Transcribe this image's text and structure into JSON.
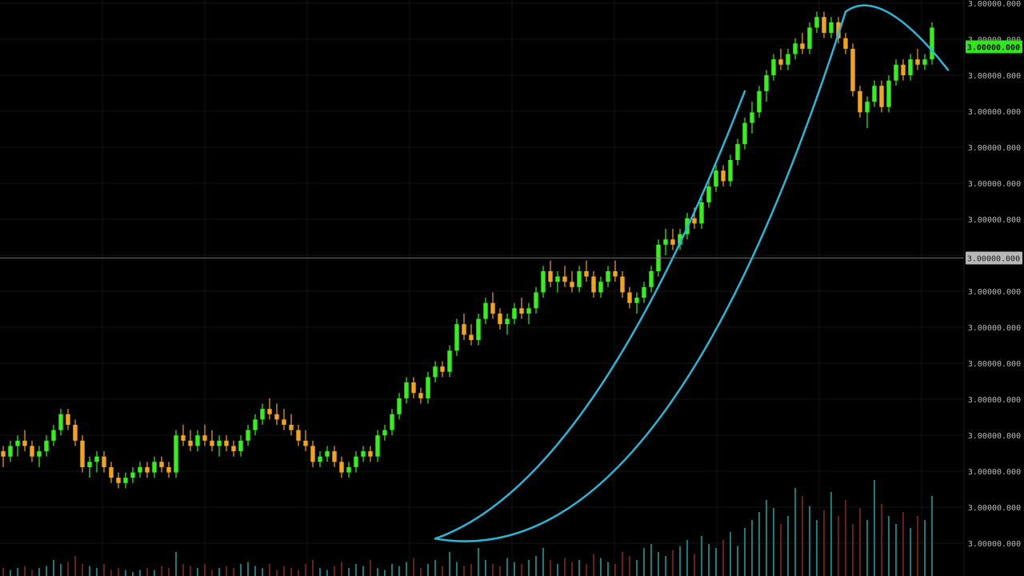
{
  "colors": {
    "background": "#000000",
    "bull": "#35f01c",
    "bear": "#f2a51c",
    "volume_up": "#1aa8a0",
    "volume_down": "#8a2a22",
    "curve": "#2ab8d8",
    "grid": "#141414",
    "crosshair": "#7a7a7a",
    "price_tag": "#2fe81a",
    "cross_tag": "#b8b8b8"
  },
  "chart_data": {
    "type": "candlestick",
    "title": "",
    "xlabel": "",
    "ylabel": "",
    "y_ticks": [
      "3.00000.000",
      "3.00000.000",
      "3.00000.000",
      "3.00000.000",
      "3.00000.000",
      "3.00000.000",
      "3.00000.000",
      "3.00000.000",
      "3.00000.000",
      "3.00000.000",
      "3.00000.000",
      "3.00000.000",
      "3.00000.000",
      "3.00000.000",
      "3.00000.000",
      "3.00000.000",
      "3.00000.000"
    ],
    "ylim": [
      0,
      100
    ],
    "current_price_tag": "3.00000.000",
    "crosshair_price_tag": "3.00000.000",
    "crosshair_level": 52.5,
    "candles": [
      [
        16,
        17,
        13,
        15
      ],
      [
        15,
        18,
        14,
        17
      ],
      [
        17,
        19,
        15,
        18
      ],
      [
        18,
        20,
        16,
        17
      ],
      [
        17,
        18,
        14,
        15
      ],
      [
        15,
        17,
        13,
        16
      ],
      [
        16,
        19,
        15,
        18
      ],
      [
        18,
        21,
        17,
        20
      ],
      [
        20,
        24,
        19,
        23
      ],
      [
        23,
        24,
        20,
        21
      ],
      [
        21,
        22,
        17,
        18
      ],
      [
        18,
        19,
        12,
        13
      ],
      [
        13,
        15,
        11,
        14
      ],
      [
        14,
        16,
        12,
        15
      ],
      [
        15,
        16,
        12,
        13
      ],
      [
        13,
        14,
        10,
        11
      ],
      [
        11,
        12,
        9,
        10
      ],
      [
        10,
        12,
        9,
        11
      ],
      [
        11,
        13,
        10,
        12
      ],
      [
        12,
        14,
        11,
        13
      ],
      [
        13,
        14,
        11,
        12
      ],
      [
        12,
        15,
        11,
        14
      ],
      [
        14,
        15,
        12,
        13
      ],
      [
        13,
        14,
        11,
        12
      ],
      [
        12,
        20,
        11,
        19
      ],
      [
        19,
        21,
        17,
        18
      ],
      [
        18,
        20,
        16,
        17
      ],
      [
        17,
        20,
        16,
        19
      ],
      [
        19,
        21,
        17,
        18
      ],
      [
        18,
        20,
        16,
        17
      ],
      [
        17,
        19,
        15,
        18
      ],
      [
        18,
        19,
        16,
        17
      ],
      [
        17,
        18,
        15,
        16
      ],
      [
        16,
        19,
        15,
        18
      ],
      [
        18,
        21,
        17,
        20
      ],
      [
        20,
        23,
        19,
        22
      ],
      [
        22,
        25,
        21,
        24
      ],
      [
        24,
        26,
        22,
        23
      ],
      [
        23,
        25,
        21,
        22
      ],
      [
        22,
        24,
        20,
        21
      ],
      [
        21,
        23,
        19,
        20
      ],
      [
        20,
        21,
        17,
        18
      ],
      [
        18,
        20,
        16,
        17
      ],
      [
        17,
        18,
        13,
        14
      ],
      [
        14,
        16,
        13,
        15
      ],
      [
        15,
        17,
        14,
        16
      ],
      [
        16,
        17,
        13,
        14
      ],
      [
        14,
        15,
        11,
        12
      ],
      [
        12,
        14,
        11,
        13
      ],
      [
        13,
        16,
        12,
        15
      ],
      [
        15,
        17,
        14,
        16
      ],
      [
        16,
        17,
        14,
        15
      ],
      [
        15,
        20,
        14,
        19
      ],
      [
        19,
        21,
        18,
        20
      ],
      [
        20,
        24,
        19,
        23
      ],
      [
        23,
        27,
        22,
        26
      ],
      [
        26,
        30,
        25,
        29
      ],
      [
        29,
        30,
        26,
        27
      ],
      [
        27,
        28,
        25,
        26
      ],
      [
        26,
        31,
        25,
        30
      ],
      [
        30,
        33,
        29,
        32
      ],
      [
        32,
        33,
        30,
        31
      ],
      [
        31,
        36,
        30,
        35
      ],
      [
        35,
        41,
        34,
        40
      ],
      [
        40,
        42,
        37,
        38
      ],
      [
        38,
        40,
        36,
        37
      ],
      [
        37,
        42,
        36,
        41
      ],
      [
        41,
        45,
        40,
        44
      ],
      [
        44,
        46,
        41,
        42
      ],
      [
        42,
        43,
        39,
        40
      ],
      [
        40,
        42,
        38,
        41
      ],
      [
        41,
        44,
        40,
        43
      ],
      [
        43,
        45,
        41,
        42
      ],
      [
        42,
        44,
        40,
        43
      ],
      [
        43,
        47,
        42,
        46
      ],
      [
        46,
        51,
        45,
        50
      ],
      [
        50,
        52,
        47,
        48
      ],
      [
        48,
        50,
        46,
        49
      ],
      [
        49,
        51,
        47,
        48
      ],
      [
        48,
        50,
        46,
        47
      ],
      [
        47,
        51,
        46,
        50
      ],
      [
        50,
        52,
        48,
        49
      ],
      [
        49,
        50,
        45,
        46
      ],
      [
        46,
        49,
        45,
        48
      ],
      [
        48,
        51,
        47,
        50
      ],
      [
        50,
        52,
        48,
        49
      ],
      [
        49,
        50,
        45,
        46
      ],
      [
        46,
        47,
        43,
        44
      ],
      [
        44,
        46,
        42,
        45
      ],
      [
        45,
        48,
        44,
        47
      ],
      [
        47,
        51,
        46,
        50
      ],
      [
        50,
        56,
        49,
        55
      ],
      [
        55,
        58,
        53,
        56
      ],
      [
        56,
        58,
        54,
        55
      ],
      [
        55,
        58,
        54,
        57
      ],
      [
        57,
        61,
        56,
        60
      ],
      [
        60,
        62,
        58,
        59
      ],
      [
        59,
        64,
        58,
        63
      ],
      [
        63,
        67,
        62,
        66
      ],
      [
        66,
        70,
        65,
        69
      ],
      [
        69,
        70,
        66,
        67
      ],
      [
        67,
        72,
        66,
        71
      ],
      [
        71,
        75,
        70,
        74
      ],
      [
        74,
        79,
        73,
        78
      ],
      [
        78,
        82,
        76,
        80
      ],
      [
        80,
        85,
        79,
        84
      ],
      [
        84,
        88,
        82,
        87
      ],
      [
        87,
        91,
        86,
        90
      ],
      [
        90,
        92,
        88,
        89
      ],
      [
        89,
        92,
        88,
        91
      ],
      [
        91,
        94,
        90,
        93
      ],
      [
        93,
        95,
        91,
        92
      ],
      [
        92,
        97,
        91,
        96
      ],
      [
        96,
        99,
        95,
        98
      ],
      [
        98,
        99,
        94,
        95
      ],
      [
        95,
        98,
        94,
        97
      ],
      [
        97,
        98,
        93,
        94
      ],
      [
        94,
        95,
        91,
        92
      ],
      [
        92,
        93,
        83,
        84
      ],
      [
        84,
        85,
        79,
        80
      ],
      [
        80,
        83,
        77,
        82
      ],
      [
        82,
        86,
        81,
        85
      ],
      [
        85,
        86,
        80,
        81
      ],
      [
        81,
        87,
        80,
        86
      ],
      [
        86,
        90,
        85,
        89
      ],
      [
        89,
        90,
        86,
        87
      ],
      [
        87,
        91,
        86,
        90
      ],
      [
        90,
        92,
        88,
        89
      ],
      [
        89,
        91,
        88,
        90
      ],
      [
        90,
        97,
        89,
        96
      ]
    ],
    "volumes": [
      4,
      3,
      4,
      5,
      3,
      4,
      5,
      8,
      6,
      7,
      10,
      6,
      5,
      4,
      6,
      3,
      4,
      3,
      2,
      3,
      4,
      3,
      5,
      4,
      12,
      6,
      5,
      4,
      6,
      3,
      4,
      5,
      4,
      6,
      7,
      5,
      4,
      6,
      3,
      5,
      4,
      3,
      6,
      8,
      4,
      3,
      5,
      7,
      4,
      6,
      5,
      8,
      4,
      3,
      6,
      5,
      7,
      9,
      4,
      6,
      8,
      5,
      12,
      7,
      5,
      6,
      14,
      8,
      6,
      5,
      9,
      7,
      6,
      8,
      10,
      14,
      8,
      6,
      9,
      7,
      8,
      6,
      11,
      9,
      7,
      6,
      12,
      10,
      8,
      14,
      16,
      12,
      10,
      13,
      15,
      18,
      11,
      20,
      16,
      14,
      18,
      22,
      15,
      24,
      28,
      32,
      38,
      34,
      26,
      30,
      44,
      40,
      35,
      28,
      33,
      42,
      30,
      38,
      26,
      34,
      28,
      48,
      36,
      30,
      26,
      32,
      24,
      30,
      28,
      40
    ]
  }
}
